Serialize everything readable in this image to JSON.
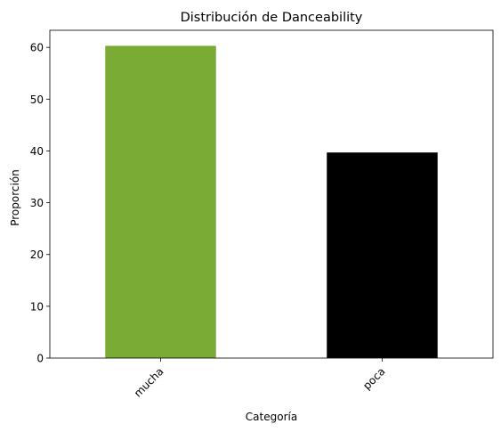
{
  "chart_data": {
    "type": "bar",
    "title": "Distribución de Danceability",
    "xlabel": "Categoría",
    "ylabel": "Proporción",
    "categories": [
      "mucha",
      "poca"
    ],
    "values": [
      60.3,
      39.7
    ],
    "colors": [
      "#7aab34",
      "#000000"
    ],
    "ylim": [
      0,
      63.3
    ],
    "yticks": [
      0,
      10,
      20,
      30,
      40,
      50,
      60
    ],
    "xtick_rotation": 45,
    "grid": false,
    "legend": "none"
  }
}
